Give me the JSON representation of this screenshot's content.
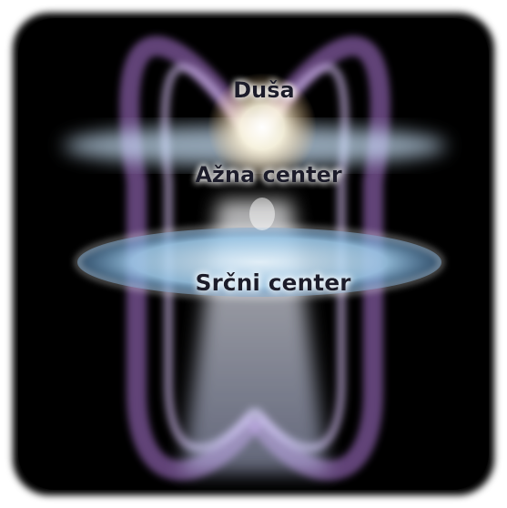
{
  "labels": {
    "soul": "Duša",
    "ajna": "Ažna center",
    "heart": "Srčni center"
  }
}
